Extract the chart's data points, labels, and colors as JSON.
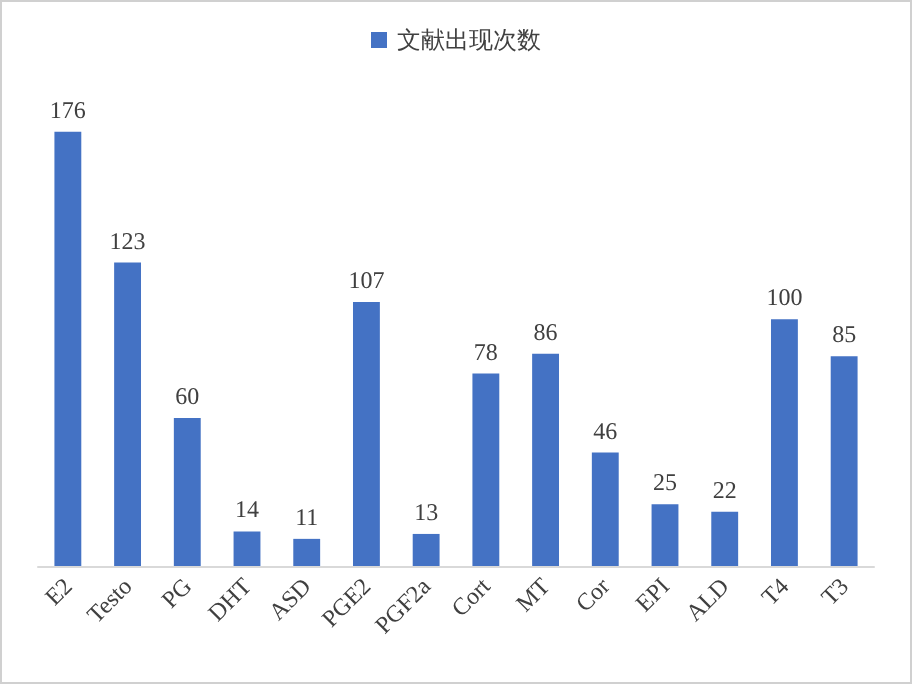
{
  "chart_data": {
    "type": "bar",
    "categories": [
      "E2",
      "Testo",
      "PG",
      "DHT",
      "ASD",
      "PGE2",
      "PGF2a",
      "Cort",
      "MT",
      "Cor",
      "EPI",
      "ALD",
      "T4",
      "T3"
    ],
    "series": [
      {
        "name": "文献出现次数",
        "color": "#4472c4",
        "values": [
          176,
          123,
          60,
          14,
          11,
          107,
          13,
          78,
          86,
          46,
          25,
          22,
          100,
          85
        ]
      }
    ],
    "data_labels": true,
    "legend": "top",
    "grid": false
  }
}
